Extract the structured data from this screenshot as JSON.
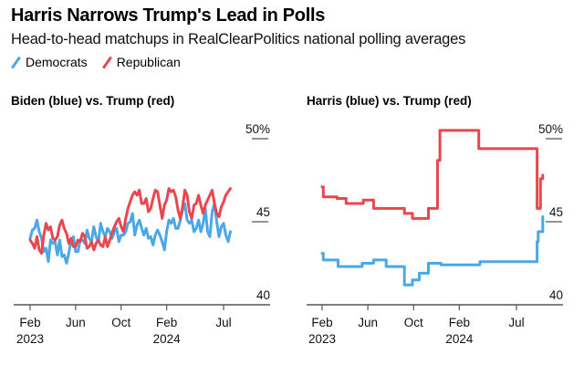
{
  "header": {
    "title": "Harris Narrows Trump's Lead in Polls",
    "subtitle": "Head-to-head matchups in RealClearPolitics national polling averages"
  },
  "legend": [
    {
      "label": "Democrats",
      "color": "#4aa8e6"
    },
    {
      "label": "Republican",
      "color": "#e8474f"
    }
  ],
  "chart_data": [
    {
      "type": "line",
      "title": "Biden (blue) vs. Trump (red)",
      "xlabel": "",
      "ylabel": "",
      "ylim": [
        40,
        50
      ],
      "yticks": [
        {
          "value": 50,
          "label": "50%"
        },
        {
          "value": 45,
          "label": "45"
        },
        {
          "value": 40,
          "label": "40"
        }
      ],
      "xlim": [
        0,
        19
      ],
      "xticks": [
        {
          "pos": 0,
          "label": "Feb",
          "sublabel": "2023"
        },
        {
          "pos": 4,
          "label": "Jun",
          "sublabel": ""
        },
        {
          "pos": 8,
          "label": "Oct",
          "sublabel": ""
        },
        {
          "pos": 12,
          "label": "Feb",
          "sublabel": "2024"
        },
        {
          "pos": 17,
          "label": "Jul",
          "sublabel": ""
        }
      ],
      "step": false,
      "series": [
        {
          "name": "Biden",
          "color": "#4aa8e6",
          "x": [
            0,
            0.2,
            0.4,
            0.6,
            0.8,
            1.0,
            1.2,
            1.4,
            1.6,
            1.8,
            2.0,
            2.2,
            2.4,
            2.6,
            2.8,
            3.0,
            3.2,
            3.4,
            3.6,
            3.8,
            4.0,
            4.2,
            4.4,
            4.6,
            4.8,
            5.0,
            5.2,
            5.4,
            5.6,
            5.8,
            6.0,
            6.2,
            6.4,
            6.6,
            6.8,
            7.0,
            7.2,
            7.4,
            7.6,
            7.8,
            8.0,
            8.2,
            8.4,
            8.6,
            8.8,
            9.0,
            9.2,
            9.4,
            9.6,
            9.8,
            10.0,
            10.2,
            10.4,
            10.6,
            10.8,
            11.0,
            11.2,
            11.4,
            11.6,
            11.8,
            12.0,
            12.2,
            12.4,
            12.6,
            12.8,
            13.0,
            13.2,
            13.4,
            13.6,
            13.8,
            14.0,
            14.2,
            14.4,
            14.6,
            14.8,
            15.0,
            15.2,
            15.4,
            15.6,
            15.8,
            16.0,
            16.2,
            16.4,
            16.6,
            16.8,
            17.0,
            17.2,
            17.4,
            17.6
          ],
          "values": [
            44.0,
            44.5,
            44.6,
            45.1,
            44.4,
            44.0,
            43.2,
            43.4,
            42.6,
            43.9,
            43.7,
            43.8,
            43.0,
            43.9,
            42.9,
            43.0,
            42.5,
            43.1,
            43.9,
            44.1,
            43.2,
            43.2,
            43.9,
            43.9,
            43.7,
            44.5,
            44.0,
            43.8,
            44.7,
            44.1,
            43.8,
            44.9,
            44.4,
            44.1,
            44.6,
            44.4,
            44.0,
            44.4,
            44.6,
            43.8,
            44.2,
            44.2,
            44.4,
            44.9,
            45.0,
            45.5,
            44.2,
            44.8,
            45.1,
            44.6,
            44.2,
            44.6,
            44.0,
            44.1,
            43.6,
            44.2,
            44.5,
            44.2,
            43.8,
            43.3,
            44.4,
            45.1,
            44.9,
            45.2,
            44.6,
            44.6,
            45.1,
            45.7,
            46.1,
            45.1,
            44.9,
            45.1,
            44.4,
            44.6,
            45.1,
            44.4,
            44.9,
            45.8,
            44.4,
            44.1,
            45.6,
            46.1,
            45.0,
            44.1,
            44.7,
            44.9,
            44.2,
            43.8,
            44.4
          ]
        },
        {
          "name": "Trump",
          "color": "#e8474f",
          "x": [
            0,
            0.2,
            0.4,
            0.6,
            0.8,
            1.0,
            1.2,
            1.4,
            1.6,
            1.8,
            2.0,
            2.2,
            2.4,
            2.6,
            2.8,
            3.0,
            3.2,
            3.4,
            3.6,
            3.8,
            4.0,
            4.2,
            4.4,
            4.6,
            4.8,
            5.0,
            5.2,
            5.4,
            5.6,
            5.8,
            6.0,
            6.2,
            6.4,
            6.6,
            6.8,
            7.0,
            7.2,
            7.4,
            7.6,
            7.8,
            8.0,
            8.2,
            8.4,
            8.6,
            8.8,
            9.0,
            9.2,
            9.4,
            9.6,
            9.8,
            10.0,
            10.2,
            10.4,
            10.6,
            10.8,
            11.0,
            11.2,
            11.4,
            11.6,
            11.8,
            12.0,
            12.2,
            12.4,
            12.6,
            12.8,
            13.0,
            13.2,
            13.4,
            13.6,
            13.8,
            14.0,
            14.2,
            14.4,
            14.6,
            14.8,
            15.0,
            15.2,
            15.4,
            15.6,
            15.8,
            16.0,
            16.2,
            16.4,
            16.6,
            16.8,
            17.0,
            17.2,
            17.4,
            17.6
          ],
          "values": [
            43.9,
            43.7,
            43.4,
            44.1,
            43.3,
            43.1,
            44.2,
            44.9,
            44.5,
            44.7,
            44.0,
            43.9,
            44.1,
            44.8,
            45.1,
            44.6,
            44.3,
            43.7,
            44.0,
            43.5,
            43.5,
            43.9,
            43.8,
            44.3,
            44.1,
            43.4,
            43.5,
            43.8,
            43.3,
            43.7,
            43.9,
            43.6,
            43.5,
            44.1,
            43.5,
            43.9,
            44.3,
            44.7,
            45.0,
            45.2,
            44.7,
            44.4,
            45.2,
            45.8,
            46.2,
            46.6,
            46.8,
            46.6,
            46.9,
            46.1,
            46.1,
            46.4,
            45.6,
            45.8,
            46.4,
            46.9,
            46.8,
            46.0,
            45.2,
            46.0,
            46.3,
            47.0,
            46.8,
            46.9,
            46.5,
            45.7,
            45.2,
            45.9,
            46.9,
            46.6,
            45.6,
            45.2,
            46.0,
            46.1,
            46.6,
            46.0,
            45.5,
            46.0,
            46.3,
            46.6,
            46.9,
            46.1,
            45.5,
            45.3,
            45.9,
            46.2,
            46.6,
            46.8,
            47.0
          ]
        }
      ]
    },
    {
      "type": "line",
      "title": "Harris (blue) vs. Trump (red)",
      "xlabel": "",
      "ylabel": "",
      "ylim": [
        40,
        50
      ],
      "yticks": [
        {
          "value": 50,
          "label": "50%"
        },
        {
          "value": 45,
          "label": "45"
        },
        {
          "value": 40,
          "label": "40"
        }
      ],
      "xlim": [
        0,
        19
      ],
      "xticks": [
        {
          "pos": 0,
          "label": "Feb",
          "sublabel": "2023"
        },
        {
          "pos": 4,
          "label": "Jun",
          "sublabel": ""
        },
        {
          "pos": 8,
          "label": "Oct",
          "sublabel": ""
        },
        {
          "pos": 12,
          "label": "Feb",
          "sublabel": "2024"
        },
        {
          "pos": 17,
          "label": "Jul",
          "sublabel": ""
        }
      ],
      "step": true,
      "series": [
        {
          "name": "Harris",
          "color": "#4aa8e6",
          "x": [
            0.0,
            0.1,
            1.4,
            3.5,
            4.5,
            5.6,
            7.2,
            7.9,
            8.5,
            9.3,
            10.4,
            10.5,
            13.8,
            18.8,
            18.9,
            19.3
          ],
          "values": [
            43.1,
            42.7,
            42.3,
            42.5,
            42.7,
            42.3,
            41.2,
            41.5,
            41.9,
            42.5,
            42.4,
            42.4,
            42.6,
            43.8,
            44.4,
            45.3
          ],
          "note": "step series approximated"
        },
        {
          "name": "Trump",
          "color": "#e8474f",
          "x": [
            0.0,
            0.1,
            1.3,
            2.1,
            3.6,
            4.5,
            7.2,
            7.9,
            9.3,
            10.1,
            10.3,
            13.7,
            18.8,
            19.1,
            19.3
          ],
          "values": [
            47.1,
            46.5,
            46.4,
            46.1,
            46.3,
            45.8,
            45.5,
            45.2,
            45.8,
            48.7,
            50.5,
            49.4,
            45.8,
            47.6,
            47.8
          ],
          "note": "step series approximated"
        }
      ]
    }
  ]
}
